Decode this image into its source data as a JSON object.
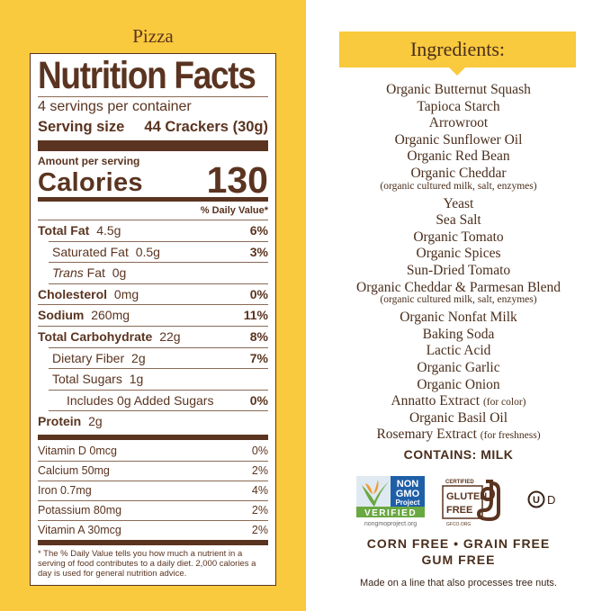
{
  "flavor": "Pizza",
  "label": {
    "title": "Nutrition Facts",
    "servings": "4 servings per container",
    "serving_size_label": "Serving size",
    "serving_size_value": "44 Crackers (30g)",
    "amount_per_serving": "Amount per serving",
    "calories_label": "Calories",
    "calories_value": "130",
    "dv_header": "% Daily Value*",
    "nutrients": [
      {
        "name": "Total Fat",
        "amount": "4.5g",
        "dv": "6%",
        "bold": true,
        "indent": 0
      },
      {
        "name": "Saturated Fat",
        "amount": "0.5g",
        "dv": "3%",
        "bold": false,
        "indent": 1
      },
      {
        "name": "Trans",
        "name_suffix": " Fat",
        "amount": "0g",
        "dv": "",
        "bold": false,
        "indent": 1,
        "italic": true
      },
      {
        "name": "Cholesterol",
        "amount": "0mg",
        "dv": "0%",
        "bold": true,
        "indent": 0
      },
      {
        "name": "Sodium",
        "amount": "260mg",
        "dv": "11%",
        "bold": true,
        "indent": 0
      },
      {
        "name": "Total Carbohydrate",
        "amount": "22g",
        "dv": "8%",
        "bold": true,
        "indent": 0
      },
      {
        "name": "Dietary Fiber",
        "amount": "2g",
        "dv": "7%",
        "bold": false,
        "indent": 1
      },
      {
        "name": "Total Sugars",
        "amount": "1g",
        "dv": "",
        "bold": false,
        "indent": 1
      },
      {
        "name": "Includes 0g Added Sugars",
        "amount": "",
        "dv": "0%",
        "bold": false,
        "indent": 2
      },
      {
        "name": "Protein",
        "amount": "2g",
        "dv": "",
        "bold": true,
        "indent": 0
      }
    ],
    "vitamins": [
      {
        "name": "Vitamin D 0mcg",
        "dv": "0%"
      },
      {
        "name": "Calcium 50mg",
        "dv": "2%"
      },
      {
        "name": "Iron 0.7mg",
        "dv": "4%"
      },
      {
        "name": "Potassium 80mg",
        "dv": "2%"
      },
      {
        "name": "Vitamin A 30mcg",
        "dv": "2%"
      }
    ],
    "footnote": "* The % Daily Value tells you how much a nutrient in a serving of food contributes to a daily diet. 2,000 calories a day is used for general nutrition advice."
  },
  "ingredients": {
    "title": "Ingredients:",
    "items": [
      {
        "text": "Organic Butternut Squash"
      },
      {
        "text": "Tapioca Starch"
      },
      {
        "text": "Arrowroot"
      },
      {
        "text": "Organic Sunflower Oil"
      },
      {
        "text": "Organic Red Bean"
      },
      {
        "text": "Organic Cheddar",
        "sub": "(organic cultured milk, salt, enzymes)"
      },
      {
        "text": "Yeast"
      },
      {
        "text": "Sea Salt"
      },
      {
        "text": "Organic Tomato"
      },
      {
        "text": "Organic Spices"
      },
      {
        "text": "Sun-Dried Tomato"
      },
      {
        "text": "Organic Cheddar & Parmesan Blend",
        "sub": "(organic cultured milk, salt, enzymes)"
      },
      {
        "text": "Organic Nonfat Milk"
      },
      {
        "text": "Baking Soda"
      },
      {
        "text": "Lactic Acid"
      },
      {
        "text": "Organic Garlic"
      },
      {
        "text": "Organic Onion"
      },
      {
        "text": "Annatto Extract",
        "note": "(for color)"
      },
      {
        "text": "Organic Basil Oil"
      },
      {
        "text": "Rosemary Extract",
        "note": "(for freshness)"
      }
    ],
    "contains": "CONTAINS: MILK"
  },
  "badges": {
    "nongmo_lines": [
      "NON",
      "GMO",
      "Project"
    ],
    "nongmo_verified": "VERIFIED",
    "nongmo_url": "nongmoproject.org",
    "gf_certified": "CERTIFIED",
    "gf_lines": [
      "GLUTEN",
      "FREE"
    ],
    "gf_org": "GFCO.ORG",
    "kosher_mark": "U",
    "kosher_suffix": "D"
  },
  "claims": [
    "CORN FREE • GRAIN FREE",
    "GUM FREE"
  ],
  "allergen_note": "Made on a line that also processes tree nuts.",
  "colors": {
    "yellow": "#f9c93e",
    "brown": "#5a3420",
    "nongmo_blue": "#1f5fa8",
    "nongmo_green": "#6aa842",
    "butterfly_orange": "#f29a2e"
  }
}
